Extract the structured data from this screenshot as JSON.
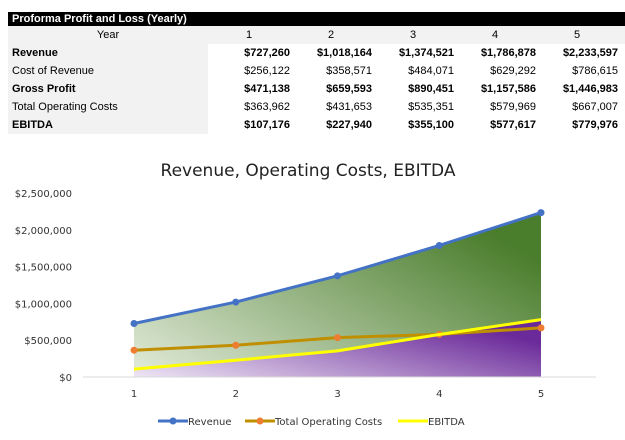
{
  "table": {
    "title": "Proforma Profit and Loss (Yearly)",
    "header_label": "Year",
    "years": [
      "1",
      "2",
      "3",
      "4",
      "5"
    ],
    "rows": [
      {
        "label": "Revenue",
        "bold": true,
        "values": [
          "$727,260",
          "$1,018,164",
          "$1,374,521",
          "$1,786,878",
          "$2,233,597"
        ]
      },
      {
        "label": "Cost of Revenue",
        "bold": false,
        "values": [
          "$256,122",
          "$358,571",
          "$484,071",
          "$629,292",
          "$786,615"
        ]
      },
      {
        "label": "Gross Profit",
        "bold": true,
        "values": [
          "$471,138",
          "$659,593",
          "$890,451",
          "$1,157,586",
          "$1,446,983"
        ]
      },
      {
        "label": "Total Operating Costs",
        "bold": false,
        "values": [
          "$363,962",
          "$431,653",
          "$535,351",
          "$579,969",
          "$667,007"
        ]
      },
      {
        "label": "EBITDA",
        "bold": true,
        "values": [
          "$107,176",
          "$227,940",
          "$355,100",
          "$577,617",
          "$779,976"
        ]
      }
    ]
  },
  "chart_data": {
    "type": "line",
    "title": "Revenue, Operating Costs, EBITDA",
    "categories": [
      "1",
      "2",
      "3",
      "4",
      "5"
    ],
    "ylim": [
      0,
      2500000
    ],
    "yticks": [
      "$0",
      "$500,000",
      "$1,000,000",
      "$1,500,000",
      "$2,000,000",
      "$2,500,000"
    ],
    "grid": false,
    "legend": "bottom",
    "series": [
      {
        "name": "Revenue",
        "values": [
          727260,
          1018164,
          1374521,
          1786878,
          2233597
        ],
        "color": "#4472c4",
        "marker": true,
        "area": "green-gradient"
      },
      {
        "name": "Total Operating Costs",
        "values": [
          363962,
          431653,
          535351,
          579969,
          667007
        ],
        "color": "#bf8f00",
        "marker_color": "#ed7d31",
        "marker": true
      },
      {
        "name": "EBITDA",
        "values": [
          107176,
          227940,
          355100,
          577617,
          779976
        ],
        "color": "#ffff00",
        "marker": false,
        "area": "purple-gradient"
      }
    ]
  }
}
